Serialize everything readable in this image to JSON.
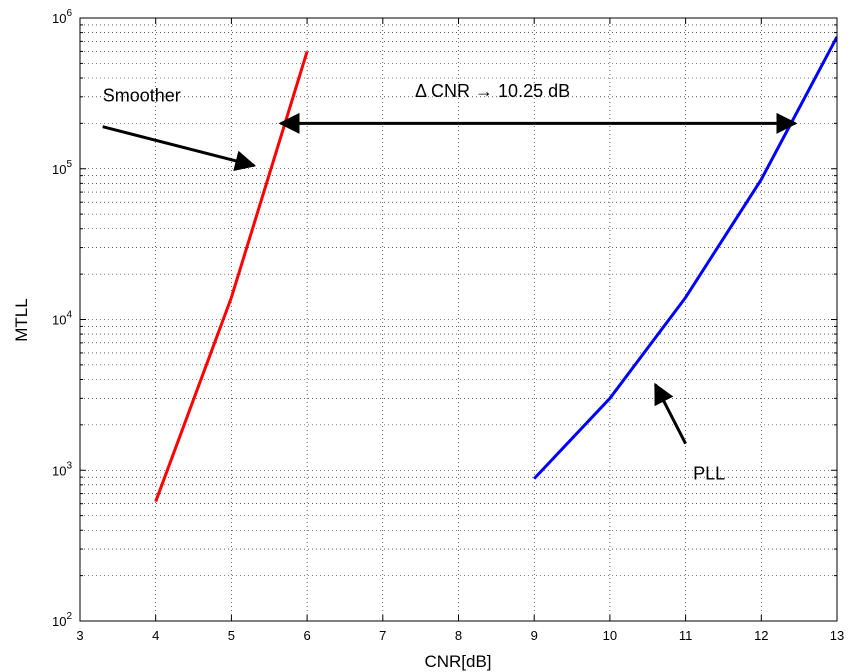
{
  "chart_data": {
    "type": "line",
    "xlabel": "CNR[dB]",
    "ylabel": "MTLL",
    "xlim": [
      3,
      13
    ],
    "ylim": [
      100,
      1000000
    ],
    "yscale": "log",
    "xticks": [
      3,
      4,
      5,
      6,
      7,
      8,
      9,
      10,
      11,
      12,
      13
    ],
    "yticks": [
      {
        "value": 100,
        "base": "10",
        "exp": "2"
      },
      {
        "value": 1000,
        "base": "10",
        "exp": "3"
      },
      {
        "value": 10000,
        "base": "10",
        "exp": "4"
      },
      {
        "value": 100000,
        "base": "10",
        "exp": "5"
      },
      {
        "value": 1000000,
        "base": "10",
        "exp": "6"
      }
    ],
    "grid": true,
    "series": [
      {
        "color": "#ff0000",
        "x": [
          4,
          5,
          6
        ],
        "y": [
          620,
          14000,
          600000
        ]
      },
      {
        "color": "#0000ff",
        "x": [
          9,
          10,
          11,
          12,
          13
        ],
        "y": [
          880,
          3000,
          14000,
          85000,
          750000
        ]
      }
    ],
    "annotations": [
      {
        "text": "Smoother",
        "arrow_from": [
          3.3,
          190000
        ],
        "arrow_to": [
          5.3,
          105000
        ],
        "label_at": [
          3.3,
          280000
        ]
      },
      {
        "text": "PLL",
        "arrow_from": [
          11.0,
          1500
        ],
        "arrow_to": [
          10.6,
          3700
        ],
        "label_at": [
          11.1,
          870
        ]
      },
      {
        "text": "Δ CNR → 10.25 dB",
        "arrow_from": [
          5.65,
          200000
        ],
        "arrow_to": [
          12.45,
          200000
        ],
        "label_at": [
          8.45,
          300000
        ]
      }
    ]
  }
}
